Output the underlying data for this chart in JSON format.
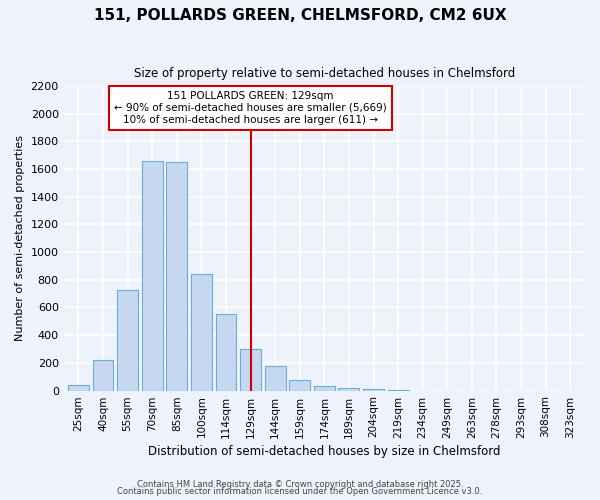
{
  "title": "151, POLLARDS GREEN, CHELMSFORD, CM2 6UX",
  "subtitle": "Size of property relative to semi-detached houses in Chelmsford",
  "xlabel": "Distribution of semi-detached houses by size in Chelmsford",
  "ylabel": "Number of semi-detached properties",
  "bar_labels": [
    "25sqm",
    "40sqm",
    "55sqm",
    "70sqm",
    "85sqm",
    "100sqm",
    "114sqm",
    "129sqm",
    "144sqm",
    "159sqm",
    "174sqm",
    "189sqm",
    "204sqm",
    "219sqm",
    "234sqm",
    "249sqm",
    "263sqm",
    "278sqm",
    "293sqm",
    "308sqm",
    "323sqm"
  ],
  "bar_values": [
    40,
    220,
    725,
    1660,
    1650,
    840,
    555,
    300,
    180,
    75,
    35,
    20,
    10,
    5,
    0,
    0,
    0,
    0,
    0,
    0,
    0
  ],
  "bar_color": "#c5d8f0",
  "bar_edge_color": "#6baed6",
  "marker_index": 7,
  "marker_color": "#cc0000",
  "annotation_title": "151 POLLARDS GREEN: 129sqm",
  "annotation_line1": "← 90% of semi-detached houses are smaller (5,669)",
  "annotation_line2": "10% of semi-detached houses are larger (611) →",
  "annotation_box_color": "#ffffff",
  "annotation_box_edge": "#cc0000",
  "ylim": [
    0,
    2200
  ],
  "yticks": [
    0,
    200,
    400,
    600,
    800,
    1000,
    1200,
    1400,
    1600,
    1800,
    2000,
    2200
  ],
  "background_color": "#eef2fb",
  "grid_color": "#ffffff",
  "footer1": "Contains HM Land Registry data © Crown copyright and database right 2025.",
  "footer2": "Contains public sector information licensed under the Open Government Licence v3.0."
}
